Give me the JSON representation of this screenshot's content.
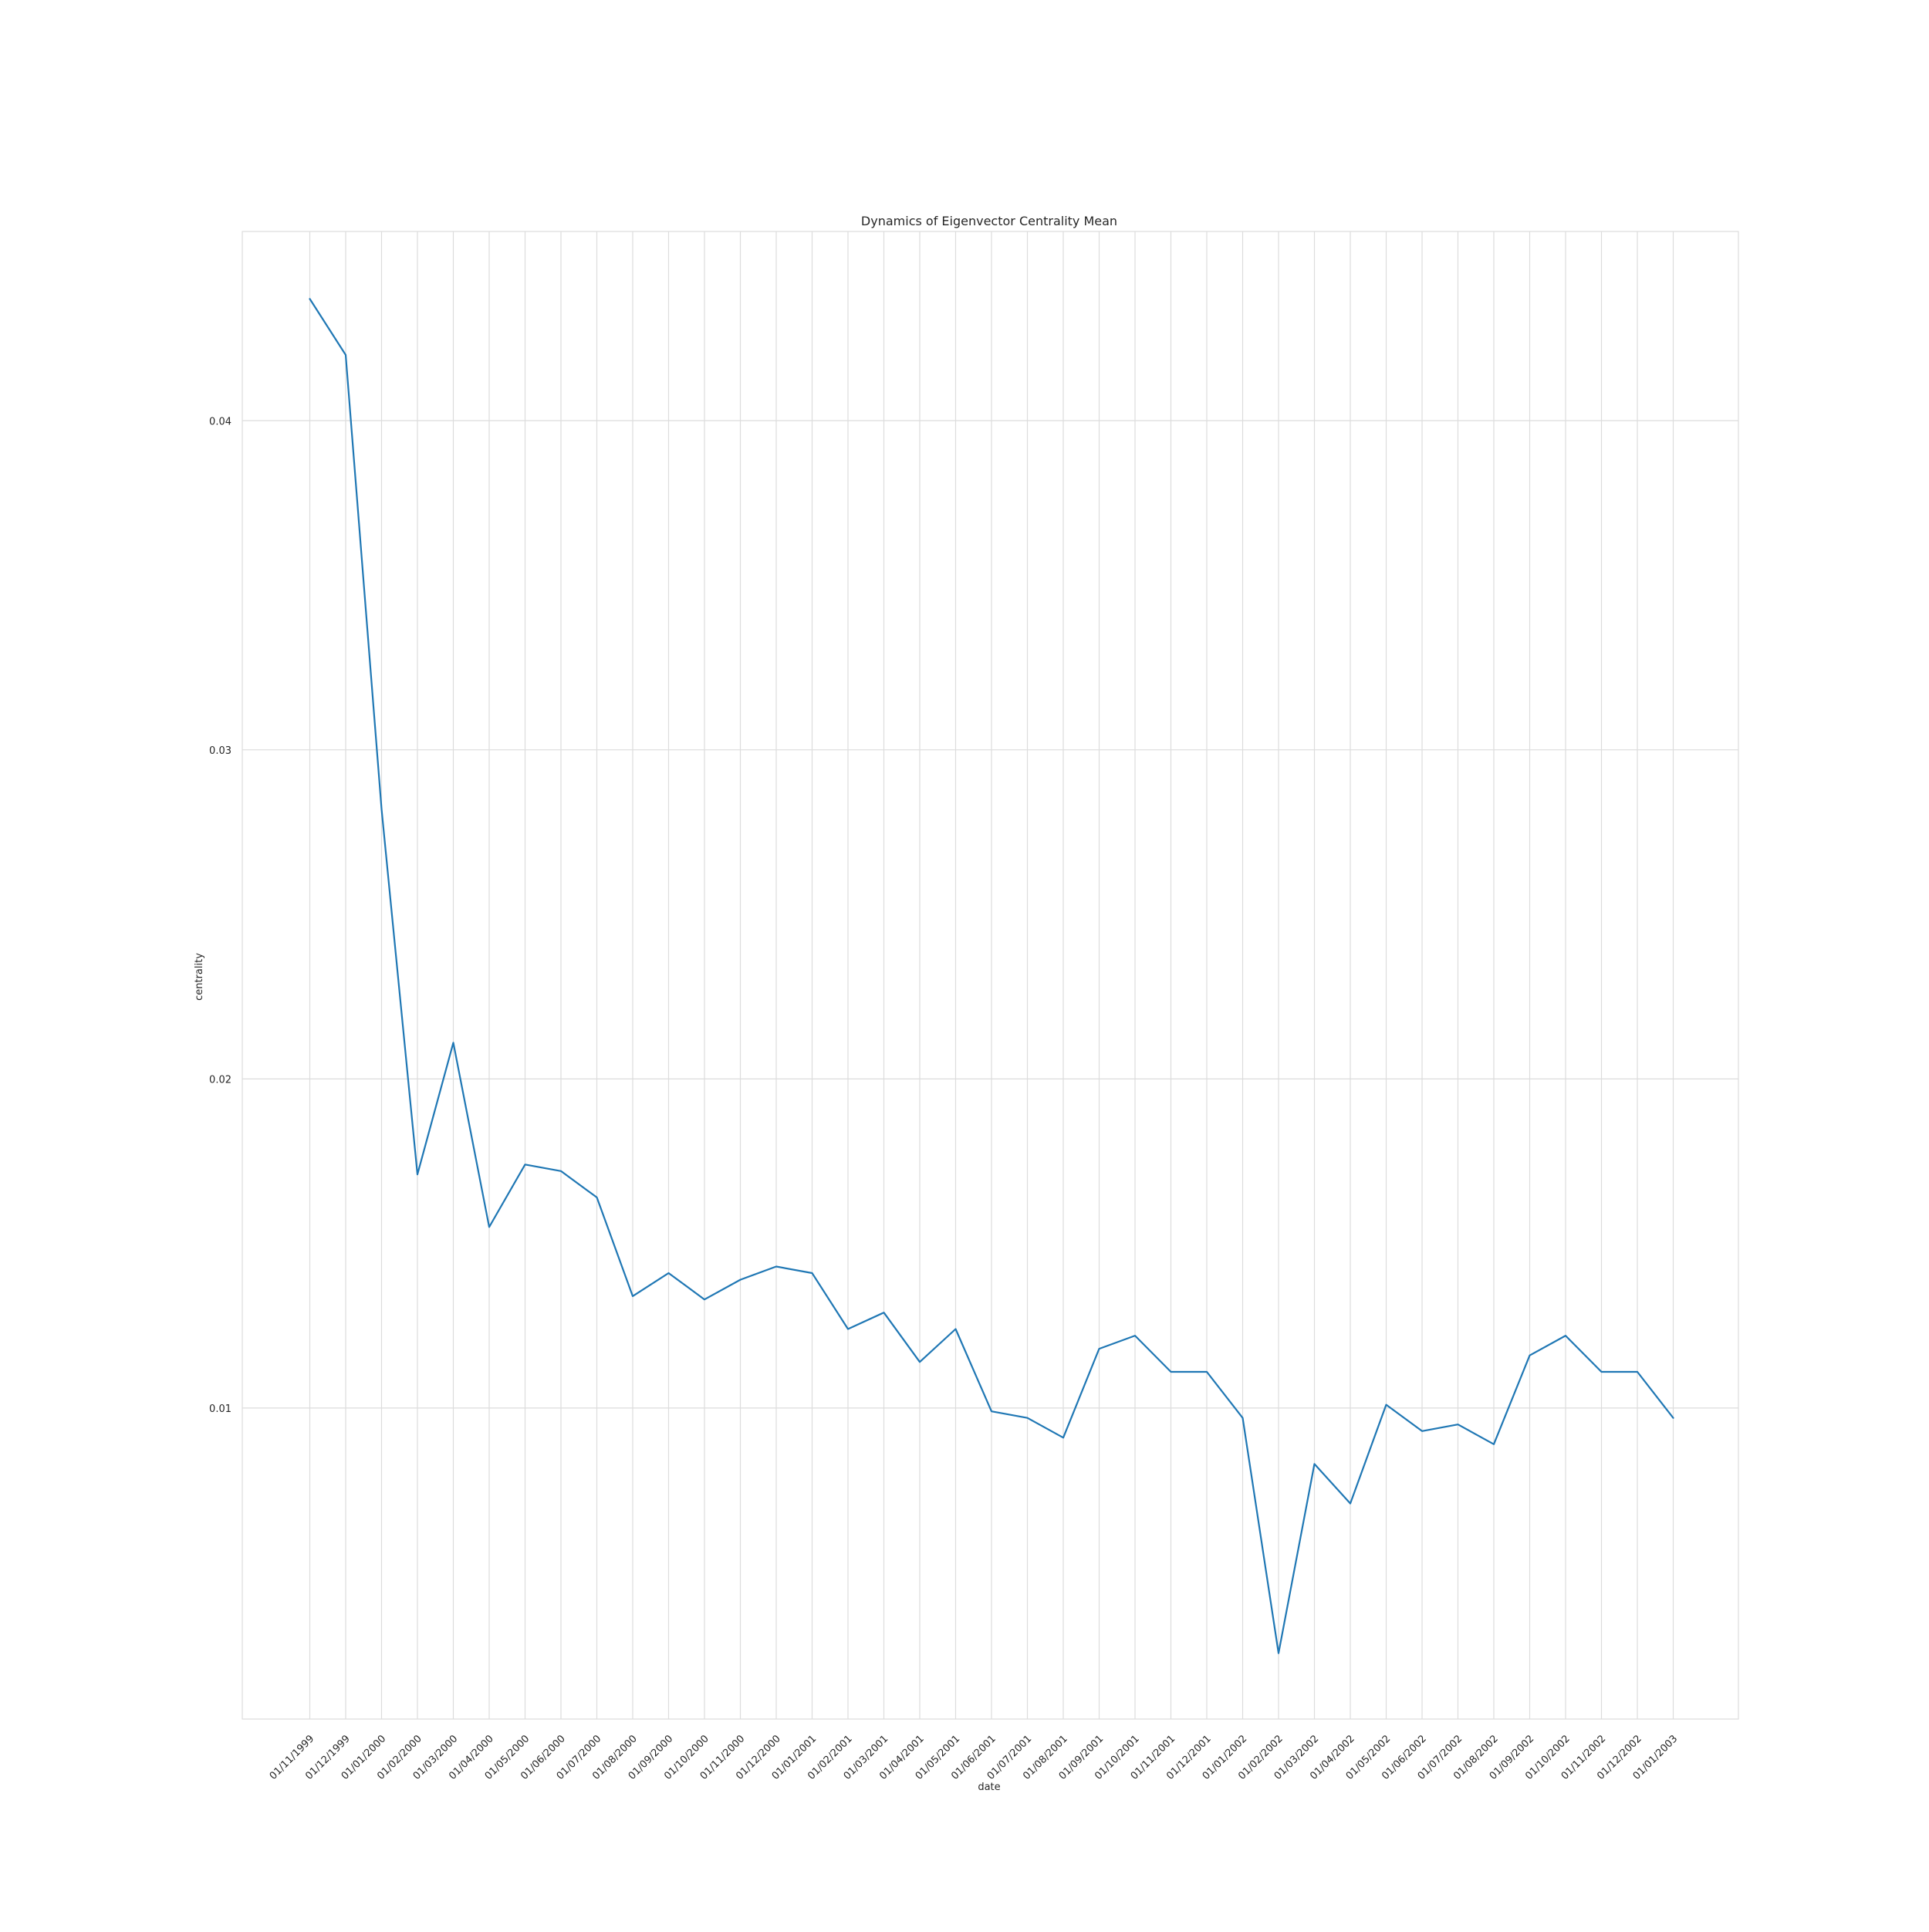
{
  "chart_data": {
    "type": "line",
    "title": "Dynamics of Eigenvector Centrality Mean",
    "xlabel": "date",
    "ylabel": "centrality",
    "categories": [
      "01/11/1999",
      "01/12/1999",
      "01/01/2000",
      "01/02/2000",
      "01/03/2000",
      "01/04/2000",
      "01/05/2000",
      "01/06/2000",
      "01/07/2000",
      "01/08/2000",
      "01/09/2000",
      "01/10/2000",
      "01/11/2000",
      "01/12/2000",
      "01/01/2001",
      "01/02/2001",
      "01/03/2001",
      "01/04/2001",
      "01/05/2001",
      "01/06/2001",
      "01/07/2001",
      "01/08/2001",
      "01/09/2001",
      "01/10/2001",
      "01/11/2001",
      "01/12/2001",
      "01/01/2002",
      "01/02/2002",
      "01/03/2002",
      "01/04/2002",
      "01/05/2002",
      "01/06/2002",
      "01/07/2002",
      "01/08/2002",
      "01/09/2002",
      "01/10/2002",
      "01/11/2002",
      "01/12/2002",
      "01/01/2003"
    ],
    "series": [
      {
        "values": [
          0.0437,
          0.042,
          0.0282,
          0.0171,
          0.0211,
          0.0155,
          0.0174,
          0.0172,
          0.0164,
          0.0134,
          0.0141,
          0.0133,
          0.0139,
          0.0143,
          0.0141,
          0.0124,
          0.0129,
          0.0114,
          0.0124,
          0.0099,
          0.0097,
          0.0091,
          0.0118,
          0.0122,
          0.0111,
          0.0111,
          0.0097,
          0.00255,
          0.0083,
          0.0071,
          0.0101,
          0.0093,
          0.0095,
          0.0089,
          0.0116,
          0.0122,
          0.0111,
          0.0111,
          0.0097
        ]
      }
    ],
    "yticks": [
      0.01,
      0.02,
      0.03,
      0.04
    ],
    "ylim": [
      0.00055,
      0.04575
    ],
    "grid": true,
    "line_color": "#1f77b4",
    "grid_color": "#dcdcdc"
  }
}
